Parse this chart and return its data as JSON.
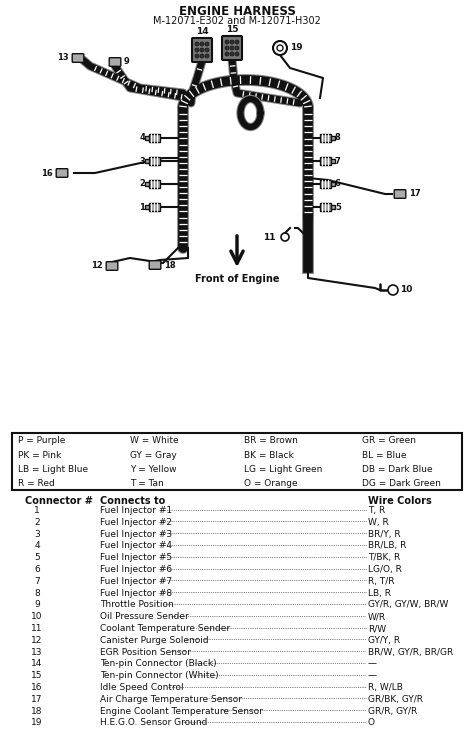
{
  "title": "ENGINE HARNESS",
  "subtitle": "M-12071-E302 and M-12071-H302",
  "legend_entries": [
    [
      "P = Purple",
      "W = White",
      "BR = Brown",
      "GR = Green"
    ],
    [
      "PK = Pink",
      "GY = Gray",
      "BK = Black",
      "BL = Blue"
    ],
    [
      "LB = Light Blue",
      "Y = Yellow",
      "LG = Light Green",
      "DB = Dark Blue"
    ],
    [
      "R = Red",
      "T = Tan",
      "O = Orange",
      "DG = Dark Green"
    ]
  ],
  "table_headers": [
    "Connector #",
    "Connects to",
    "Wire Colors"
  ],
  "table_rows": [
    [
      "1",
      "Fuel Injector #1",
      "T, R"
    ],
    [
      "2",
      "Fuel Injector #2",
      "W, R"
    ],
    [
      "3",
      "Fuel Injector #3",
      "BR/Y, R"
    ],
    [
      "4",
      "Fuel Injector #4",
      "BR/LB, R"
    ],
    [
      "5",
      "Fuel Injector #5",
      "T/BK, R"
    ],
    [
      "6",
      "Fuel Injector #6",
      "LG/O, R"
    ],
    [
      "7",
      "Fuel Injector #7",
      "R, T/R"
    ],
    [
      "8",
      "Fuel Injector #8",
      "LB, R"
    ],
    [
      "9",
      "Throttle Position",
      "GY/R, GY/W, BR/W"
    ],
    [
      "10",
      "Oil Pressure Sender",
      "W/R"
    ],
    [
      "11",
      "Coolant Temperature Sender",
      "R/W"
    ],
    [
      "12",
      "Canister Purge Solenoid",
      "GY/Y, R"
    ],
    [
      "13",
      "EGR Position Sensor",
      "BR/W, GY/R, BR/GR"
    ],
    [
      "14",
      "Ten-pin Connector (Black)",
      "—"
    ],
    [
      "15",
      "Ten-pin Connector (White)",
      "—"
    ],
    [
      "16",
      "Idle Speed Control",
      "R, W/LB"
    ],
    [
      "17",
      "Air Charge Temperature Sensor",
      "GR/BK, GY/R"
    ],
    [
      "18",
      "Engine Coolant Temperature Sensor",
      "GR/R, GY/R"
    ],
    [
      "19",
      "H.E.G.O. Sensor Ground",
      "O"
    ]
  ],
  "bg_color": "#ffffff",
  "text_color": "#111111",
  "diagram_color": "#111111"
}
